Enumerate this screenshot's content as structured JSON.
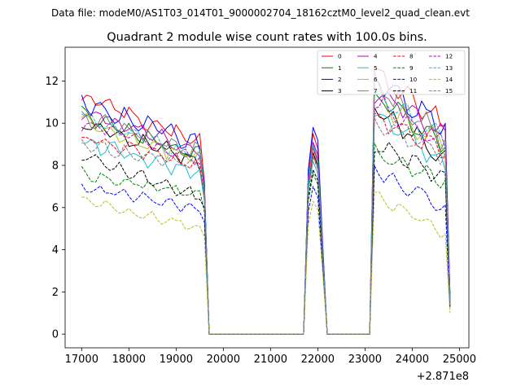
{
  "figure": {
    "suptitle": "Data file: modeM0/AS1T03_014T01_9000002704_18162cztM0_level2_quad_clean.evt",
    "title": "Quadrant 2 module wise count rates with 100.0s bins.",
    "x_offset_label": "+2.871e8"
  },
  "chart_data": {
    "type": "line",
    "title": "Quadrant 2 module wise count rates with 100.0s bins.",
    "xlabel": "",
    "ylabel": "",
    "x_offset": 287100000,
    "xlim": [
      16650,
      25200
    ],
    "ylim": [
      -0.65,
      13.6
    ],
    "xticks": [
      17000,
      18000,
      19000,
      20000,
      21000,
      22000,
      23000,
      24000,
      25000
    ],
    "xtick_labels": [
      "17000",
      "18000",
      "19000",
      "20000",
      "21000",
      "22000",
      "23000",
      "24000",
      "25000"
    ],
    "yticks": [
      0,
      2,
      4,
      6,
      8,
      10,
      12
    ],
    "ytick_labels": [
      "0",
      "2",
      "4",
      "6",
      "8",
      "10",
      "12"
    ],
    "legend_position": "upper right",
    "segments": [
      {
        "x_start": 17000,
        "x_end": 19600,
        "step": 100
      },
      {
        "x_start": 21800,
        "x_end": 22100,
        "step": 100
      },
      {
        "x_start": 23200,
        "x_end": 24700,
        "step": 100
      }
    ],
    "gaps": [
      [
        19700,
        21700
      ],
      [
        22200,
        23100
      ]
    ],
    "final_x": 24800,
    "series": [
      {
        "name": "0",
        "color": "#ff0000",
        "dash": "solid",
        "seg1": {
          "start": 11.3,
          "end": 9.0,
          "amp": 0.35,
          "phase": 0.0,
          "dip": 7.2
        },
        "peak": [
          7.7,
          9.5,
          8.8,
          4.3
        ],
        "seg3": {
          "start": 12.3,
          "end": 10.0,
          "amp": 0.45,
          "phase": 0.3
        },
        "final": 1.8
      },
      {
        "name": "1",
        "color": "#008000",
        "dash": "solid",
        "seg1": {
          "start": 10.4,
          "end": 8.4,
          "amp": 0.3,
          "phase": 1.1,
          "dip": 6.8
        },
        "peak": [
          7.3,
          8.9,
          8.2,
          4.1
        ],
        "seg3": {
          "start": 11.3,
          "end": 9.0,
          "amp": 0.4,
          "phase": 1.4
        },
        "final": 1.6
      },
      {
        "name": "2",
        "color": "#0000ff",
        "dash": "solid",
        "seg1": {
          "start": 11.0,
          "end": 8.9,
          "amp": 0.35,
          "phase": 2.2,
          "dip": 7.1
        },
        "peak": [
          7.8,
          9.8,
          9.2,
          4.5
        ],
        "seg3": {
          "start": 12.0,
          "end": 9.8,
          "amp": 0.45,
          "phase": 2.5
        },
        "final": 1.9
      },
      {
        "name": "3",
        "color": "#000000",
        "dash": "solid",
        "seg1": {
          "start": 9.9,
          "end": 8.1,
          "amp": 0.3,
          "phase": 3.3,
          "dip": 6.6
        },
        "peak": [
          7.1,
          8.6,
          8.0,
          3.9
        ],
        "seg3": {
          "start": 10.8,
          "end": 8.3,
          "amp": 0.4,
          "phase": 3.6
        },
        "final": 1.5
      },
      {
        "name": "4",
        "color": "#bf00bf",
        "dash": "solid",
        "seg1": {
          "start": 10.6,
          "end": 8.6,
          "amp": 0.3,
          "phase": 4.4,
          "dip": 6.9
        },
        "peak": [
          7.4,
          9.1,
          8.5,
          4.2
        ],
        "seg3": {
          "start": 11.6,
          "end": 9.4,
          "amp": 0.4,
          "phase": 4.7
        },
        "final": 1.7
      },
      {
        "name": "5",
        "color": "#17becf",
        "dash": "solid",
        "seg1": {
          "start": 9.1,
          "end": 7.6,
          "amp": 0.3,
          "phase": 5.5,
          "dip": 6.3
        },
        "peak": [
          6.8,
          8.2,
          7.6,
          3.8
        ],
        "seg3": {
          "start": 10.6,
          "end": 8.0,
          "amp": 0.4,
          "phase": 5.8
        },
        "final": 1.4
      },
      {
        "name": "6",
        "color": "#bcbd22",
        "dash": "solid",
        "seg1": {
          "start": 10.1,
          "end": 8.2,
          "amp": 0.3,
          "phase": 6.6,
          "dip": 6.7
        },
        "peak": [
          7.2,
          8.8,
          8.1,
          4.0
        ],
        "seg3": {
          "start": 11.2,
          "end": 8.9,
          "amp": 0.4,
          "phase": 6.9
        },
        "final": 1.6
      },
      {
        "name": "7",
        "color": "#7f7f7f",
        "dash": "solid",
        "seg1": {
          "start": 10.3,
          "end": 8.5,
          "amp": 0.3,
          "phase": 7.7,
          "dip": 6.8
        },
        "peak": [
          7.3,
          9.0,
          8.3,
          4.1
        ],
        "seg3": {
          "start": 11.8,
          "end": 9.2,
          "amp": 0.4,
          "phase": 8.0
        },
        "final": 1.7
      },
      {
        "name": "8",
        "color": "#ff0000",
        "dash": "dashed",
        "seg1": {
          "start": 9.3,
          "end": 7.9,
          "amp": 0.25,
          "phase": 0.6,
          "dip": 6.5
        },
        "peak": [
          7.0,
          8.5,
          7.9,
          3.9
        ],
        "seg3": {
          "start": 10.3,
          "end": 8.6,
          "amp": 0.35,
          "phase": 0.9
        },
        "final": 1.5
      },
      {
        "name": "9",
        "color": "#008000",
        "dash": "dashed",
        "seg1": {
          "start": 7.6,
          "end": 6.6,
          "amp": 0.22,
          "phase": 1.7,
          "dip": 5.8
        },
        "peak": [
          6.3,
          7.6,
          7.1,
          3.6
        ],
        "seg3": {
          "start": 8.6,
          "end": 7.2,
          "amp": 0.3,
          "phase": 2.0
        },
        "final": 1.3
      },
      {
        "name": "10",
        "color": "#0000ff",
        "dash": "dashed",
        "seg1": {
          "start": 7.0,
          "end": 5.9,
          "amp": 0.2,
          "phase": 2.8,
          "dip": 5.3
        },
        "peak": [
          5.8,
          7.0,
          6.5,
          3.3
        ],
        "seg3": {
          "start": 7.8,
          "end": 5.9,
          "amp": 0.3,
          "phase": 3.1
        },
        "final": 1.2
      },
      {
        "name": "11",
        "color": "#000000",
        "dash": "dashed",
        "seg1": {
          "start": 8.4,
          "end": 6.5,
          "amp": 0.22,
          "phase": 3.9,
          "dip": 6.0
        },
        "peak": [
          6.5,
          7.8,
          7.3,
          3.7
        ],
        "seg3": {
          "start": 9.0,
          "end": 7.4,
          "amp": 0.3,
          "phase": 4.2
        },
        "final": 1.3
      },
      {
        "name": "12",
        "color": "#bf00bf",
        "dash": "dashed",
        "seg1": {
          "start": 10.0,
          "end": 8.3,
          "amp": 0.28,
          "phase": 5.0,
          "dip": 6.7
        },
        "peak": [
          7.2,
          8.8,
          8.2,
          4.0
        ],
        "seg3": {
          "start": 11.0,
          "end": 8.9,
          "amp": 0.38,
          "phase": 5.3
        },
        "final": 1.6
      },
      {
        "name": "13",
        "color": "#17becf",
        "dash": "dashed",
        "seg1": {
          "start": 10.3,
          "end": 8.4,
          "amp": 0.28,
          "phase": 6.1,
          "dip": 6.8
        },
        "peak": [
          7.3,
          8.9,
          8.3,
          4.1
        ],
        "seg3": {
          "start": 11.4,
          "end": 9.1,
          "amp": 0.38,
          "phase": 6.4
        },
        "final": 1.6
      },
      {
        "name": "14",
        "color": "#bcbd22",
        "dash": "dashed",
        "seg1": {
          "start": 6.3,
          "end": 5.0,
          "amp": 0.18,
          "phase": 7.2,
          "dip": 4.6
        },
        "peak": [
          5.2,
          6.3,
          5.9,
          3.0
        ],
        "seg3": {
          "start": 6.6,
          "end": 4.8,
          "amp": 0.25,
          "phase": 7.5
        },
        "final": 1.0
      },
      {
        "name": "15",
        "color": "#7f7f7f",
        "dash": "dashed",
        "seg1": {
          "start": 9.0,
          "end": 7.9,
          "amp": 0.25,
          "phase": 8.3,
          "dip": 6.5
        },
        "peak": [
          6.9,
          8.4,
          7.8,
          3.9
        ],
        "seg3": {
          "start": 10.0,
          "end": 8.4,
          "amp": 0.35,
          "phase": 8.6
        },
        "final": 1.4
      }
    ]
  }
}
